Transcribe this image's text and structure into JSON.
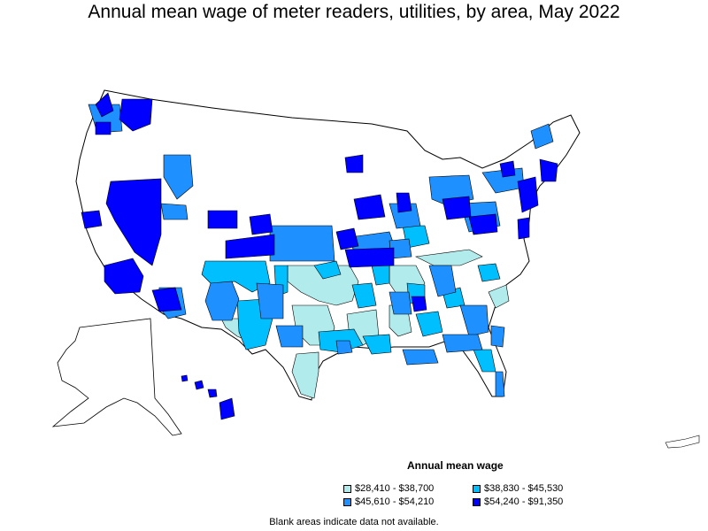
{
  "title": "Annual mean wage of meter readers, utilities, by area, May 2022",
  "legend": {
    "title": "Annual mean wage",
    "items": [
      {
        "label": "$28,410 - $38,700",
        "color": "#b2ebeb"
      },
      {
        "label": "$38,830 - $45,530",
        "color": "#00bfff"
      },
      {
        "label": "$45,610 - $54,210",
        "color": "#1e90ff"
      },
      {
        "label": "$54,240 - $91,350",
        "color": "#0000ff"
      }
    ]
  },
  "footnote": "Blank areas indicate data not available.",
  "colors": {
    "no_data": "#ffffff",
    "border": "#000000"
  }
}
